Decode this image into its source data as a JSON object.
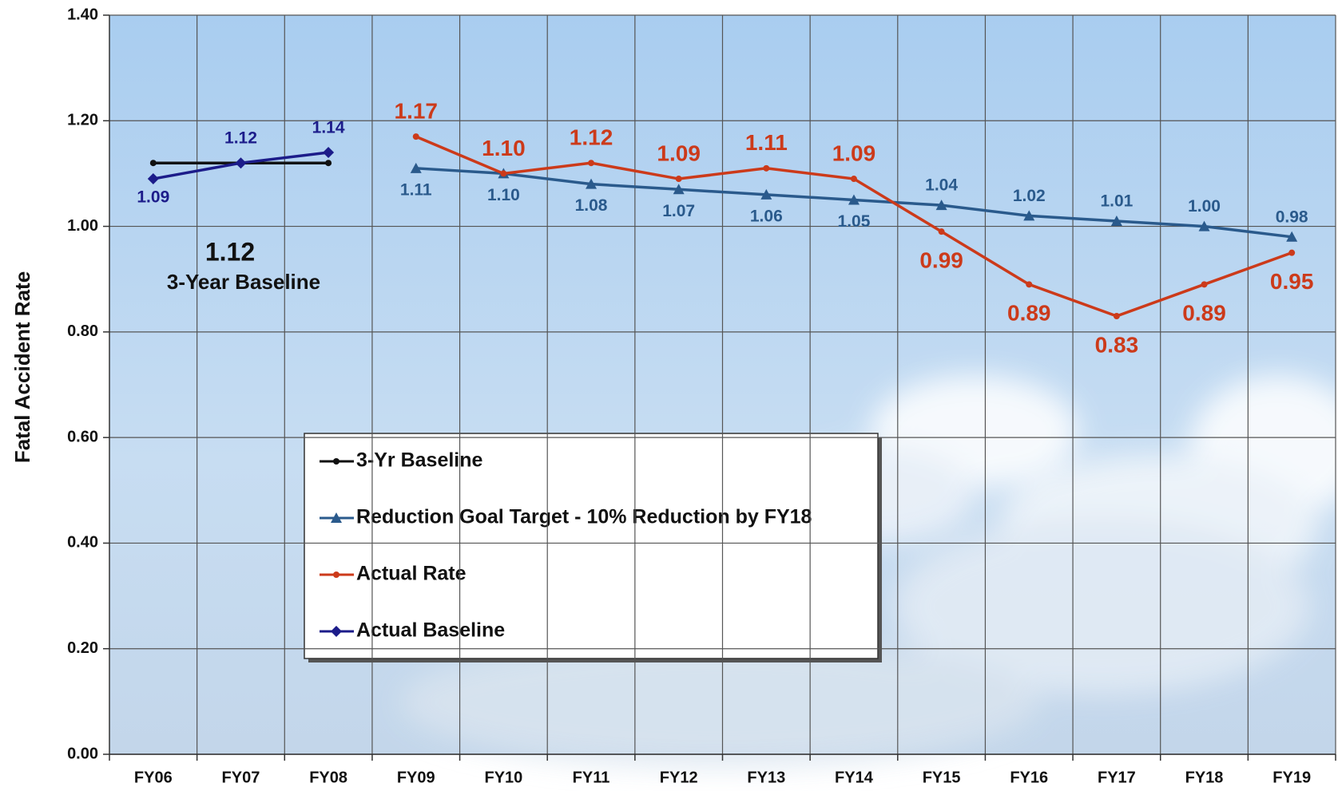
{
  "chart_data": {
    "type": "line",
    "y_label": "Fatal Accident Rate",
    "categories": [
      "FY06",
      "FY07",
      "FY08",
      "FY09",
      "FY10",
      "FY11",
      "FY12",
      "FY13",
      "FY14",
      "FY15",
      "FY16",
      "FY17",
      "FY18",
      "FY19"
    ],
    "ylim": [
      0,
      1.4
    ],
    "yticks": [
      {
        "value": 0,
        "label": "0.00"
      },
      {
        "value": 0.2,
        "label": "0.20"
      },
      {
        "value": 0.4,
        "label": "0.40"
      },
      {
        "value": 0.6,
        "label": "0.60"
      },
      {
        "value": 0.8,
        "label": "0.80"
      },
      {
        "value": 1,
        "label": "1.00"
      },
      {
        "value": 1.2,
        "label": "1.20"
      },
      {
        "value": 1.4,
        "label": "1.40"
      }
    ],
    "grid": true,
    "annotations": [
      {
        "text": "1.12"
      },
      {
        "text": "3-Year Baseline"
      }
    ],
    "series": [
      {
        "name": "3-Yr Baseline",
        "color": "#111111",
        "marker": "dot",
        "values": [
          1.12,
          1.12,
          1.12,
          null,
          null,
          null,
          null,
          null,
          null,
          null,
          null,
          null,
          null,
          null
        ]
      },
      {
        "name": "Reduction Goal Target - 10% Reduction by FY18",
        "color": "#2a5a8c",
        "marker": "triangle",
        "values": [
          null,
          null,
          null,
          1.11,
          1.1,
          1.08,
          1.07,
          1.06,
          1.05,
          1.04,
          1.02,
          1.01,
          1,
          0.98
        ],
        "value_labels": [
          null,
          null,
          null,
          "1.11",
          "1.10",
          "1.08",
          "1.07",
          "1.06",
          "1.05",
          "1.04",
          "1.02",
          "1.01",
          "1.00",
          "0.98"
        ]
      },
      {
        "name": "Actual Rate",
        "color": "#cc3a1a",
        "marker": "dot",
        "values": [
          null,
          null,
          null,
          1.17,
          1.1,
          1.12,
          1.09,
          1.11,
          1.09,
          0.99,
          0.89,
          0.83,
          0.89,
          0.95
        ],
        "value_labels": [
          null,
          null,
          null,
          "1.17",
          "1.10",
          "1.12",
          "1.09",
          "1.11",
          "1.09",
          "0.99",
          "0.89",
          "0.83",
          "0.89",
          "0.95"
        ]
      },
      {
        "name": "Actual Baseline",
        "color": "#1c1c8a",
        "marker": "diamond",
        "values": [
          1.09,
          1.12,
          1.14,
          null,
          null,
          null,
          null,
          null,
          null,
          null,
          null,
          null,
          null,
          null
        ],
        "value_labels": [
          "1.09",
          "1.12",
          "1.14",
          null,
          null,
          null,
          null,
          null,
          null,
          null,
          null,
          null,
          null,
          null
        ]
      }
    ]
  }
}
